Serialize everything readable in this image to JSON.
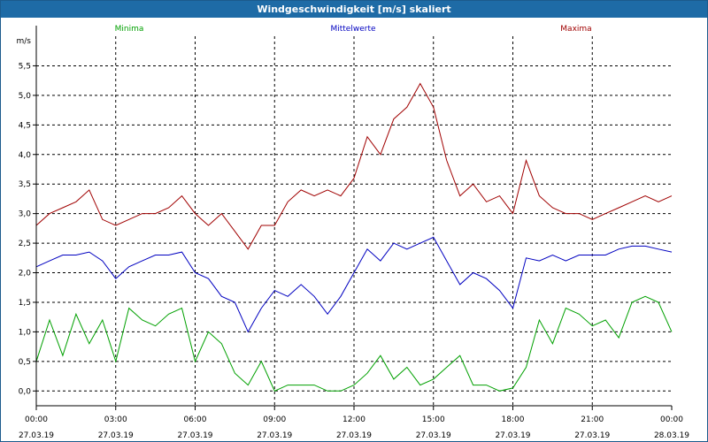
{
  "window": {
    "title": "Windgeschwindigkeit [m/s] skaliert"
  },
  "colors": {
    "min": "#00a000",
    "mean": "#0000c0",
    "max": "#a00000",
    "titlebar": "#1e6ba6"
  },
  "chart_data": {
    "type": "line",
    "title": "Windgeschwindigkeit [m/s] skaliert",
    "ylabel": "m/s",
    "ylim": [
      -0.25,
      6.0
    ],
    "yticks": [
      "0,0",
      "0,5",
      "1,0",
      "1,5",
      "2,0",
      "2,5",
      "3,0",
      "3,5",
      "4,0",
      "4,5",
      "5,0",
      "5,5"
    ],
    "xlim": [
      0,
      24
    ],
    "xticks": [
      {
        "time": "00:00",
        "date": "27.03.19"
      },
      {
        "time": "03:00",
        "date": "27.03.19"
      },
      {
        "time": "06:00",
        "date": "27.03.19"
      },
      {
        "time": "09:00",
        "date": "27.03.19"
      },
      {
        "time": "12:00",
        "date": "27.03.19"
      },
      {
        "time": "15:00",
        "date": "27.03.19"
      },
      {
        "time": "18:00",
        "date": "27.03.19"
      },
      {
        "time": "21:00",
        "date": "27.03.19"
      },
      {
        "time": "00:00",
        "date": "28.03.19"
      }
    ],
    "grid": true,
    "legend_position": "top",
    "series": [
      {
        "name": "Minima",
        "color": "#00a000",
        "x": [
          0,
          0.5,
          1,
          1.5,
          2,
          2.5,
          3,
          3.5,
          4,
          4.5,
          5,
          5.5,
          6,
          6.5,
          7,
          7.5,
          8,
          8.5,
          9,
          9.5,
          10,
          10.5,
          11,
          11.5,
          12,
          12.5,
          13,
          13.5,
          14,
          14.5,
          15,
          15.5,
          16,
          16.5,
          17,
          17.5,
          18,
          18.5,
          19,
          19.5,
          20,
          20.5,
          21,
          21.5,
          22,
          22.5,
          23,
          23.5,
          24
        ],
        "values": [
          0.5,
          1.2,
          0.6,
          1.3,
          0.8,
          1.2,
          0.5,
          1.4,
          1.2,
          1.1,
          1.3,
          1.4,
          0.5,
          1.0,
          0.8,
          0.3,
          0.1,
          0.5,
          0.0,
          0.1,
          0.1,
          0.1,
          0.0,
          0.0,
          0.1,
          0.3,
          0.6,
          0.2,
          0.4,
          0.1,
          0.2,
          0.4,
          0.6,
          0.1,
          0.1,
          0.0,
          0.05,
          0.4,
          1.2,
          0.8,
          1.4,
          1.3,
          1.1,
          1.2,
          0.9,
          1.5,
          1.6,
          1.5,
          1.0
        ]
      },
      {
        "name": "Mittelwerte",
        "color": "#0000c0",
        "x": [
          0,
          0.5,
          1,
          1.5,
          2,
          2.5,
          3,
          3.5,
          4,
          4.5,
          5,
          5.5,
          6,
          6.5,
          7,
          7.5,
          8,
          8.5,
          9,
          9.5,
          10,
          10.5,
          11,
          11.5,
          12,
          12.5,
          13,
          13.5,
          14,
          14.5,
          15,
          15.5,
          16,
          16.5,
          17,
          17.5,
          18,
          18.5,
          19,
          19.5,
          20,
          20.5,
          21,
          21.5,
          22,
          22.5,
          23,
          23.5,
          24
        ],
        "values": [
          2.1,
          2.2,
          2.3,
          2.3,
          2.35,
          2.2,
          1.9,
          2.1,
          2.2,
          2.3,
          2.3,
          2.35,
          2.0,
          1.9,
          1.6,
          1.5,
          1.0,
          1.4,
          1.7,
          1.6,
          1.8,
          1.6,
          1.3,
          1.6,
          2.0,
          2.4,
          2.2,
          2.5,
          2.4,
          2.5,
          2.6,
          2.2,
          1.8,
          2.0,
          1.9,
          1.7,
          1.4,
          2.25,
          2.2,
          2.3,
          2.2,
          2.3,
          2.3,
          2.3,
          2.4,
          2.45,
          2.45,
          2.4,
          2.35
        ]
      },
      {
        "name": "Maxima",
        "color": "#a00000",
        "x": [
          0,
          0.5,
          1,
          1.5,
          2,
          2.5,
          3,
          3.5,
          4,
          4.5,
          5,
          5.5,
          6,
          6.5,
          7,
          7.5,
          8,
          8.5,
          9,
          9.5,
          10,
          10.5,
          11,
          11.5,
          12,
          12.5,
          13,
          13.5,
          14,
          14.5,
          15,
          15.5,
          16,
          16.5,
          17,
          17.5,
          18,
          18.5,
          19,
          19.5,
          20,
          20.5,
          21,
          21.5,
          22,
          22.5,
          23,
          23.5,
          24
        ],
        "values": [
          2.8,
          3.0,
          3.1,
          3.2,
          3.4,
          2.9,
          2.8,
          2.9,
          3.0,
          3.0,
          3.1,
          3.3,
          3.0,
          2.8,
          3.0,
          2.7,
          2.4,
          2.8,
          2.8,
          3.2,
          3.4,
          3.3,
          3.4,
          3.3,
          3.6,
          4.3,
          4.0,
          4.6,
          4.8,
          5.2,
          4.8,
          3.9,
          3.3,
          3.5,
          3.2,
          3.3,
          3.0,
          3.9,
          3.3,
          3.1,
          3.0,
          3.0,
          2.9,
          3.0,
          3.1,
          3.2,
          3.3,
          3.2,
          3.3
        ]
      }
    ]
  }
}
